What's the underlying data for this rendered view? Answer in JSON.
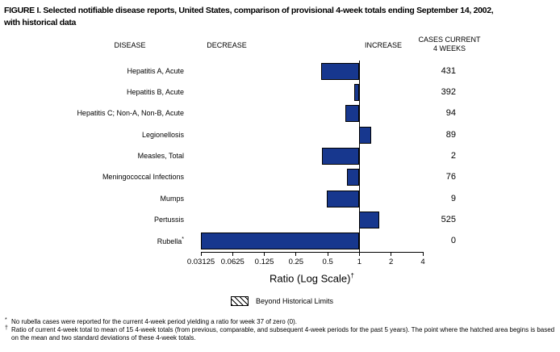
{
  "figure": {
    "title_line1": "FIGURE I. Selected notifiable disease reports, United States, comparison of provisional 4-week totals ending September 14, 2002,",
    "title_line2": "with historical data"
  },
  "columns": {
    "disease": "DISEASE",
    "decrease": "DECREASE",
    "increase": "INCREASE",
    "cases_line1": "CASES CURRENT",
    "cases_line2": "4 WEEKS"
  },
  "chart_data": {
    "type": "bar",
    "orientation": "horizontal",
    "title": "FIGURE I. Selected notifiable disease reports, United States, comparison of provisional 4-week totals ending September 14, 2002, with historical data",
    "xlabel": "Ratio (Log Scale)",
    "xlabel_superscript": "†",
    "scale": "log2",
    "baseline": 1,
    "xlim": [
      0.03125,
      4
    ],
    "x_ticks": [
      "0.03125",
      "0.0625",
      "0.125",
      "0.25",
      "0.5",
      "1",
      "2",
      "4"
    ],
    "bar_color": "#17378e",
    "grid": false,
    "rows": [
      {
        "disease": "Hepatitis A, Acute",
        "ratio": 0.43,
        "cases": "431"
      },
      {
        "disease": "Hepatitis B, Acute",
        "ratio": 0.89,
        "cases": "392"
      },
      {
        "disease": "Hepatitis C; Non-A, Non-B, Acute",
        "ratio": 0.74,
        "cases": "94"
      },
      {
        "disease": "Legionellosis",
        "ratio": 1.29,
        "cases": "89"
      },
      {
        "disease": "Measles, Total",
        "ratio": 0.44,
        "cases": "2"
      },
      {
        "disease": "Meningococcal Infections",
        "ratio": 0.76,
        "cases": "76"
      },
      {
        "disease": "Mumps",
        "ratio": 0.49,
        "cases": "9"
      },
      {
        "disease": "Pertussis",
        "ratio": 1.53,
        "cases": "525"
      },
      {
        "disease": "Rubella",
        "marker": "*",
        "ratio": 0.03125,
        "cases": "0",
        "note": "actual ratio 0, bar clipped to axis minimum"
      }
    ],
    "legend": {
      "label": "Beyond Historical Limits",
      "swatch": "hatched",
      "position": "bottom"
    }
  },
  "footnotes": [
    {
      "marker": "*",
      "text": "No rubella cases were reported for the current 4-week period yielding a ratio for week 37 of zero (0)."
    },
    {
      "marker": "†",
      "text": "Ratio of current 4-week total to mean of 15 4-week totals (from previous, comparable, and subsequent 4-week periods for the past 5 years). The point where the hatched area begins is based on the mean and two standard deviations of these 4-week totals."
    }
  ]
}
